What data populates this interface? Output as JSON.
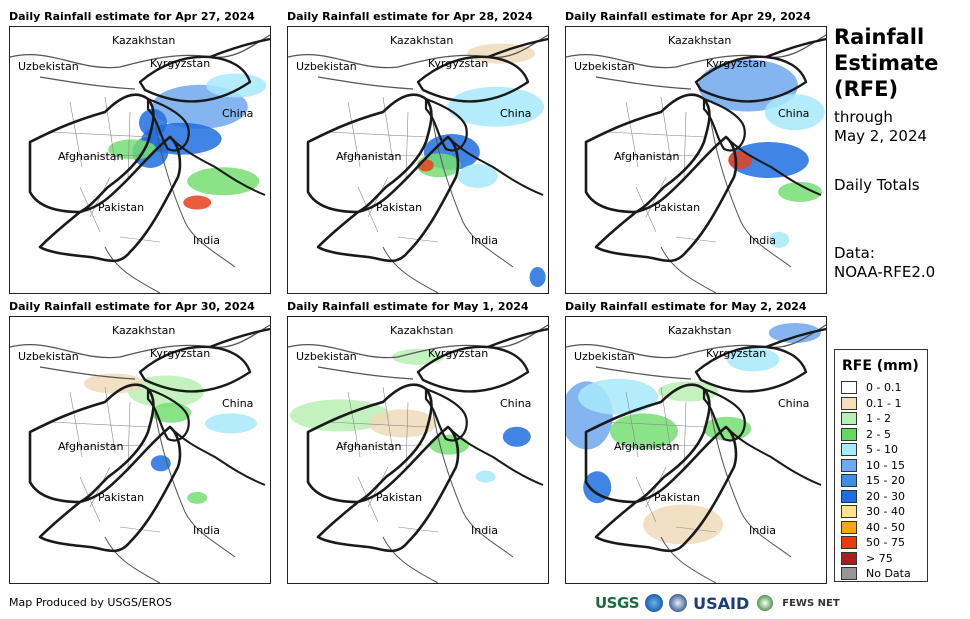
{
  "panels": [
    {
      "title": "Daily Rainfall estimate for Apr 27, 2024",
      "blobs": [
        [
          0.73,
          0.3,
          48,
          22,
          "#6fa8ef"
        ],
        [
          0.66,
          0.42,
          40,
          16,
          "#1f6fe0"
        ],
        [
          0.82,
          0.58,
          36,
          14,
          "#75de72"
        ],
        [
          0.54,
          0.47,
          18,
          16,
          "#1f6fe0"
        ],
        [
          0.72,
          0.66,
          14,
          7,
          "#e8401c"
        ],
        [
          0.47,
          0.46,
          24,
          10,
          "#75de72"
        ],
        [
          0.87,
          0.22,
          30,
          12,
          "#a8e9fb"
        ],
        [
          0.55,
          0.36,
          14,
          14,
          "#1f6fe0"
        ]
      ]
    },
    {
      "title": "Daily Rainfall estimate for Apr 28, 2024",
      "blobs": [
        [
          0.8,
          0.3,
          48,
          20,
          "#a8e9fb"
        ],
        [
          0.63,
          0.47,
          28,
          18,
          "#1f6fe0"
        ],
        [
          0.58,
          0.52,
          22,
          12,
          "#75de72"
        ],
        [
          0.53,
          0.52,
          8,
          6,
          "#e8401c"
        ],
        [
          0.73,
          0.56,
          20,
          12,
          "#a8e9fb"
        ],
        [
          0.96,
          0.94,
          8,
          10,
          "#1f6fe0"
        ],
        [
          0.82,
          0.1,
          34,
          10,
          "#eedbb9"
        ]
      ]
    },
    {
      "title": "Daily Rainfall estimate for Apr 29, 2024",
      "blobs": [
        [
          0.7,
          0.22,
          50,
          26,
          "#6fa8ef"
        ],
        [
          0.78,
          0.5,
          40,
          18,
          "#1f6fe0"
        ],
        [
          0.88,
          0.32,
          30,
          18,
          "#a8e9fb"
        ],
        [
          0.67,
          0.5,
          12,
          9,
          "#e8401c"
        ],
        [
          0.9,
          0.62,
          22,
          10,
          "#75de72"
        ],
        [
          0.82,
          0.8,
          10,
          8,
          "#a8e9fb"
        ]
      ]
    },
    {
      "title": "Daily Rainfall estimate for Apr 30, 2024",
      "blobs": [
        [
          0.6,
          0.28,
          38,
          16,
          "#b8f0b4"
        ],
        [
          0.85,
          0.4,
          26,
          10,
          "#a8e9fb"
        ],
        [
          0.58,
          0.55,
          10,
          8,
          "#1f6fe0"
        ],
        [
          0.62,
          0.36,
          20,
          10,
          "#75de72"
        ],
        [
          0.4,
          0.25,
          30,
          10,
          "#eedbb9"
        ],
        [
          0.72,
          0.68,
          10,
          6,
          "#75de72"
        ]
      ]
    },
    {
      "title": "Daily Rainfall estimate for May 1, 2024",
      "blobs": [
        [
          0.2,
          0.37,
          50,
          16,
          "#b8f0b4"
        ],
        [
          0.44,
          0.4,
          34,
          14,
          "#eedbb9"
        ],
        [
          0.88,
          0.45,
          14,
          10,
          "#1f6fe0"
        ],
        [
          0.62,
          0.48,
          20,
          10,
          "#75de72"
        ],
        [
          0.5,
          0.15,
          26,
          8,
          "#b8f0b4"
        ],
        [
          0.76,
          0.6,
          10,
          6,
          "#a8e9fb"
        ]
      ]
    },
    {
      "title": "Daily Rainfall estimate for May 2, 2024",
      "blobs": [
        [
          0.08,
          0.37,
          26,
          34,
          "#6fa8ef"
        ],
        [
          0.2,
          0.3,
          40,
          18,
          "#a8e9fb"
        ],
        [
          0.12,
          0.64,
          14,
          16,
          "#1f6fe0"
        ],
        [
          0.3,
          0.43,
          34,
          18,
          "#75de72"
        ],
        [
          0.62,
          0.42,
          24,
          12,
          "#75de72"
        ],
        [
          0.72,
          0.16,
          26,
          12,
          "#a8e9fb"
        ],
        [
          0.88,
          0.06,
          26,
          10,
          "#6fa8ef"
        ],
        [
          0.47,
          0.28,
          30,
          10,
          "#b8f0b4"
        ],
        [
          0.45,
          0.78,
          40,
          20,
          "#eedbb9"
        ]
      ]
    }
  ],
  "map_labels": [
    {
      "text": "Kazakhstan"
    },
    {
      "text": "Uzbekistan"
    },
    {
      "text": "Kyrgyzstan"
    },
    {
      "text": "China"
    },
    {
      "text": "Afghanistan"
    },
    {
      "text": "Pakistan"
    },
    {
      "text": "India"
    }
  ],
  "side": {
    "title_lines": [
      "Rainfall",
      "Estimate",
      "(RFE)"
    ],
    "through_label": "through",
    "date": "May 2, 2024",
    "totals": "Daily Totals",
    "data_label": "Data:",
    "data_source": "NOAA-RFE2.0"
  },
  "legend": {
    "title": "RFE (mm)",
    "items": [
      {
        "label": "0 - 0.1",
        "color": "#ffffff"
      },
      {
        "label": "0.1 - 1",
        "color": "#f5deb9"
      },
      {
        "label": "1 - 2",
        "color": "#b8f0b4"
      },
      {
        "label": "2 - 5",
        "color": "#64d85f"
      },
      {
        "label": "5 - 10",
        "color": "#a8e9fb"
      },
      {
        "label": "10 - 15",
        "color": "#6fa8ef"
      },
      {
        "label": "15 - 20",
        "color": "#3f8ce4"
      },
      {
        "label": "20 - 30",
        "color": "#1f6fe0"
      },
      {
        "label": "30 - 40",
        "color": "#fde48a"
      },
      {
        "label": "40 - 50",
        "color": "#ffa510"
      },
      {
        "label": "50 - 75",
        "color": "#ec3a0f"
      },
      {
        "label": "> 75",
        "color": "#a3221e"
      },
      {
        "label": "No Data",
        "color": "#969696"
      }
    ]
  },
  "footer": {
    "credit": "Map Produced by USGS/EROS",
    "logos": {
      "usgs": "USGS",
      "usaid": "USAID",
      "fewsnet": "FEWS NET"
    }
  }
}
